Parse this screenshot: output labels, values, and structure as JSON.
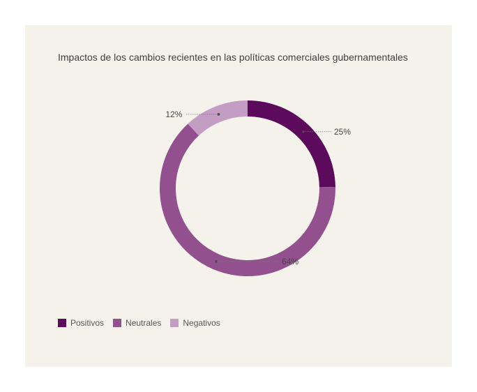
{
  "chart_data": {
    "type": "pie",
    "title": "Impactos de los cambios recientes en las políticas comerciales gubernamentales",
    "categories": [
      "Positivos",
      "Neutrales",
      "Negativos"
    ],
    "values": [
      25,
      64,
      12
    ],
    "value_labels": [
      "25%",
      "64%",
      "12%"
    ],
    "colors": [
      "#5c0a5c",
      "#93508f",
      "#c39dc3"
    ],
    "donut": true,
    "legend_position": "bottom-left"
  },
  "colors": {
    "background": "#f5f2ec",
    "page": "#ffffff"
  }
}
